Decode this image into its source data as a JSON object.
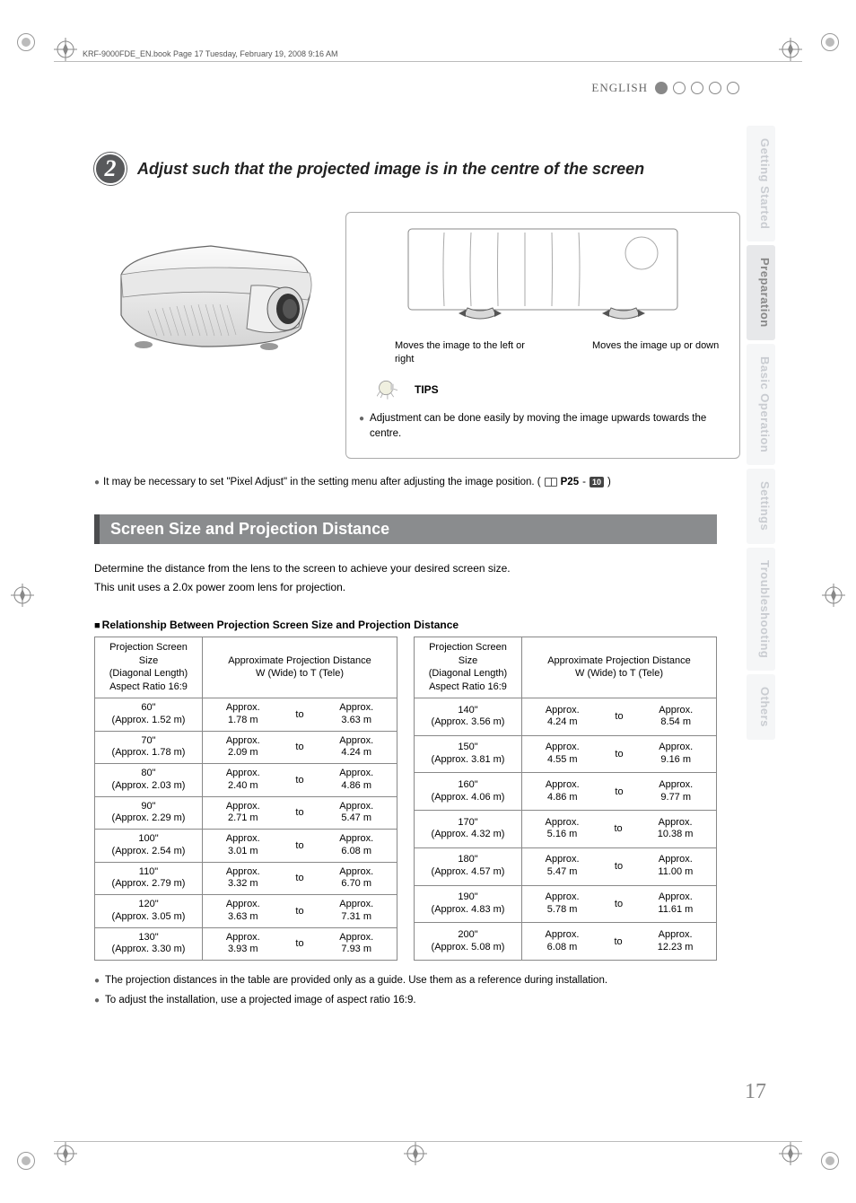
{
  "header": {
    "book_line": "KRF-9000FDE_EN.book  Page 17  Tuesday, February 19, 2008  9:16 AM",
    "language": "ENGLISH"
  },
  "sidebar": {
    "tabs": [
      "Getting Started",
      "Preparation",
      "Basic Operation",
      "Settings",
      "Troubleshooting",
      "Others"
    ],
    "active_index": 1,
    "inactive_color": "#c9ccd1",
    "active_color": "#888888"
  },
  "step": {
    "number": "2",
    "title": "Adjust such that the projected image is in the centre of the screen",
    "circle_bg": "#58595b"
  },
  "dial_captions": {
    "left": "Moves the image to the left or right",
    "right": "Moves the image up or down"
  },
  "tips": {
    "label": "TIPS",
    "text": "Adjustment can be done easily by moving the image upwards towards the centre."
  },
  "note": {
    "prefix": "It may be necessary to set \"Pixel Adjust\" in the setting menu after adjusting the image position. (",
    "page_ref": "P25",
    "dash": " - ",
    "badge": "10",
    "suffix": ")"
  },
  "section": {
    "title": "Screen Size and Projection Distance",
    "bar_bg": "#8a8c8e",
    "bar_border": "#4b4c4e",
    "intro1": "Determine the distance from the lens to the screen to achieve your desired screen size.",
    "intro2": "This unit uses a 2.0x power zoom lens for projection."
  },
  "table": {
    "subheading": "Relationship Between Projection Screen Size and Projection Distance",
    "col_size_label": "Projection Screen Size\n(Diagonal Length)\nAspect Ratio 16:9",
    "col_dist_label": "Approximate Projection Distance\nW (Wide) to T (Tele)",
    "to_label": "to",
    "approx_label": "Approx.",
    "left_rows": [
      {
        "size": "60\"",
        "size_m": "(Approx. 1.52 m)",
        "w": "1.78 m",
        "t": "3.63 m"
      },
      {
        "size": "70\"",
        "size_m": "(Approx. 1.78 m)",
        "w": "2.09 m",
        "t": "4.24 m"
      },
      {
        "size": "80\"",
        "size_m": "(Approx. 2.03 m)",
        "w": "2.40 m",
        "t": "4.86 m"
      },
      {
        "size": "90\"",
        "size_m": "(Approx. 2.29 m)",
        "w": "2.71 m",
        "t": "5.47 m"
      },
      {
        "size": "100\"",
        "size_m": "(Approx. 2.54 m)",
        "w": "3.01 m",
        "t": "6.08 m"
      },
      {
        "size": "110\"",
        "size_m": "(Approx. 2.79 m)",
        "w": "3.32 m",
        "t": "6.70 m"
      },
      {
        "size": "120\"",
        "size_m": "(Approx. 3.05 m)",
        "w": "3.63 m",
        "t": "7.31 m"
      },
      {
        "size": "130\"",
        "size_m": "(Approx. 3.30 m)",
        "w": "3.93 m",
        "t": "7.93 m"
      }
    ],
    "right_rows": [
      {
        "size": "140\"",
        "size_m": "(Approx. 3.56 m)",
        "w": "4.24 m",
        "t": "8.54 m"
      },
      {
        "size": "150\"",
        "size_m": "(Approx. 3.81 m)",
        "w": "4.55 m",
        "t": "9.16 m"
      },
      {
        "size": "160\"",
        "size_m": "(Approx. 4.06 m)",
        "w": "4.86 m",
        "t": "9.77 m"
      },
      {
        "size": "170\"",
        "size_m": "(Approx. 4.32 m)",
        "w": "5.16 m",
        "t": "10.38 m"
      },
      {
        "size": "180\"",
        "size_m": "(Approx. 4.57 m)",
        "w": "5.47 m",
        "t": "11.00 m"
      },
      {
        "size": "190\"",
        "size_m": "(Approx. 4.83 m)",
        "w": "5.78 m",
        "t": "11.61 m"
      },
      {
        "size": "200\"",
        "size_m": "(Approx. 5.08 m)",
        "w": "6.08 m",
        "t": "12.23 m"
      }
    ]
  },
  "footnotes": {
    "f1": "The projection distances in the table are provided only as a guide. Use them as a reference during installation.",
    "f2": "To adjust the installation, use a projected image of aspect ratio 16:9."
  },
  "page_number": "17",
  "colors": {
    "text": "#000000",
    "muted": "#888888",
    "rule": "#bbbbbb",
    "border": "#888888"
  }
}
